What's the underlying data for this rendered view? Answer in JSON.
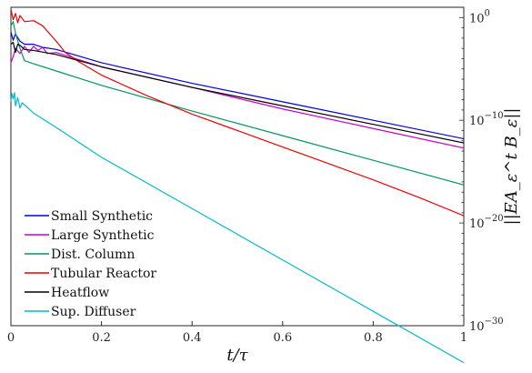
{
  "chart_data": {
    "type": "line",
    "title": "",
    "xlabel": "t/τ",
    "ylabel": "||EA_ε^t B_ε||",
    "xlim": [
      0,
      1
    ],
    "ylim_exponent": [
      -30,
      1
    ],
    "y_scale": "log",
    "x_ticks": [
      {
        "value": 0,
        "label": "0"
      },
      {
        "value": 0.2,
        "label": "0.2"
      },
      {
        "value": 0.4,
        "label": "0.4"
      },
      {
        "value": 0.6,
        "label": "0.6"
      },
      {
        "value": 0.8,
        "label": "0.8"
      },
      {
        "value": 1,
        "label": "1"
      }
    ],
    "y_ticks": [
      {
        "exponent": 0,
        "base": "10",
        "exp_label": "0"
      },
      {
        "exponent": -10,
        "base": "10",
        "exp_label": "−10"
      },
      {
        "exponent": -20,
        "base": "10",
        "exp_label": "−20"
      },
      {
        "exponent": -30,
        "base": "10",
        "exp_label": "−30"
      }
    ],
    "grid": false,
    "legend_position": "bottom-left",
    "series": [
      {
        "name": "Small Synthetic",
        "color": "#0000dd",
        "points": [
          [
            0,
            -1.4
          ],
          [
            0.005,
            -2.2
          ],
          [
            0.01,
            -1.6
          ],
          [
            0.02,
            -2.3
          ],
          [
            0.03,
            -2.6
          ],
          [
            0.05,
            -2.6
          ],
          [
            0.07,
            -2.9
          ],
          [
            0.1,
            -3.1
          ],
          [
            0.2,
            -4.4
          ],
          [
            0.4,
            -6.4
          ],
          [
            0.6,
            -8.2
          ],
          [
            0.8,
            -10.0
          ],
          [
            1.0,
            -11.8
          ]
        ]
      },
      {
        "name": "Large Synthetic",
        "color": "#cc00cc",
        "points": [
          [
            0,
            -4.4
          ],
          [
            0.005,
            -3.8
          ],
          [
            0.01,
            -3.0
          ],
          [
            0.02,
            -3.5
          ],
          [
            0.03,
            -2.8
          ],
          [
            0.04,
            -3.4
          ],
          [
            0.05,
            -2.8
          ],
          [
            0.06,
            -3.2
          ],
          [
            0.07,
            -2.9
          ],
          [
            0.08,
            -3.5
          ],
          [
            0.1,
            -3.4
          ],
          [
            0.2,
            -4.8
          ],
          [
            0.4,
            -6.8
          ],
          [
            0.6,
            -8.9
          ],
          [
            0.8,
            -10.8
          ],
          [
            1.0,
            -12.7
          ]
        ]
      },
      {
        "name": "Dist. Column",
        "color": "#00995d",
        "points": [
          [
            0,
            -0.8
          ],
          [
            0.005,
            -0.4
          ],
          [
            0.01,
            -1.5
          ],
          [
            0.02,
            -3.0
          ],
          [
            0.03,
            -4.2
          ],
          [
            0.05,
            -4.5
          ],
          [
            0.1,
            -5.2
          ],
          [
            0.2,
            -6.6
          ],
          [
            0.4,
            -9.1
          ],
          [
            0.6,
            -11.5
          ],
          [
            0.8,
            -13.9
          ],
          [
            1.0,
            -16.3
          ]
        ]
      },
      {
        "name": "Tubular Reactor",
        "color": "#ee0000",
        "points": [
          [
            0,
            0.8
          ],
          [
            0.005,
            -0.2
          ],
          [
            0.01,
            0.4
          ],
          [
            0.015,
            -0.5
          ],
          [
            0.02,
            0.2
          ],
          [
            0.03,
            -0.4
          ],
          [
            0.05,
            -0.3
          ],
          [
            0.07,
            -0.8
          ],
          [
            0.08,
            -1.3
          ],
          [
            0.1,
            -2.3
          ],
          [
            0.12,
            -3.4
          ],
          [
            0.15,
            -4.3
          ],
          [
            0.2,
            -5.6
          ],
          [
            0.3,
            -7.6
          ],
          [
            0.4,
            -9.4
          ],
          [
            0.5,
            -11.0
          ],
          [
            0.6,
            -12.6
          ],
          [
            0.7,
            -14.2
          ],
          [
            0.8,
            -15.8
          ],
          [
            0.9,
            -17.5
          ],
          [
            1.0,
            -19.3
          ]
        ]
      },
      {
        "name": "Heatflow",
        "color": "#000000",
        "points": [
          [
            0,
            -2.6
          ],
          [
            0.005,
            -2.4
          ],
          [
            0.01,
            -3.4
          ],
          [
            0.015,
            -2.6
          ],
          [
            0.02,
            -2.7
          ],
          [
            0.03,
            -3.1
          ],
          [
            0.05,
            -3.2
          ],
          [
            0.1,
            -3.6
          ],
          [
            0.2,
            -4.8
          ],
          [
            0.4,
            -6.8
          ],
          [
            0.6,
            -8.6
          ],
          [
            0.8,
            -10.4
          ],
          [
            1.0,
            -12.2
          ]
        ]
      },
      {
        "name": "Sup. Diffuser",
        "color": "#00bcc8",
        "points": [
          [
            0,
            -8.2
          ],
          [
            0.002,
            -7.4
          ],
          [
            0.005,
            -7.9
          ],
          [
            0.008,
            -7.3
          ],
          [
            0.01,
            -8.6
          ],
          [
            0.015,
            -7.8
          ],
          [
            0.02,
            -8.8
          ],
          [
            0.025,
            -8.3
          ],
          [
            0.05,
            -9.3
          ],
          [
            0.1,
            -10.7
          ],
          [
            0.2,
            -13.6
          ],
          [
            0.4,
            -18.6
          ],
          [
            0.6,
            -23.6
          ],
          [
            0.8,
            -28.6
          ],
          [
            1.0,
            -33.6
          ]
        ]
      }
    ]
  }
}
